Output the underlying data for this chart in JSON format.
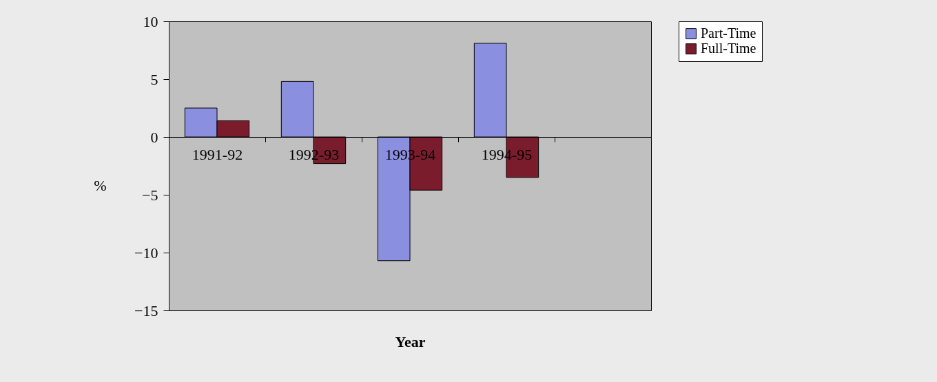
{
  "chart_data": {
    "type": "bar",
    "xlabel": "Year",
    "ylabel": "%",
    "categories": [
      "1991-92",
      "1992-93",
      "1993-94",
      "1994-95",
      null
    ],
    "series": [
      {
        "name": "Part-Time",
        "color": "#8a8fe0",
        "values": [
          2.5,
          4.8,
          -10.7,
          8.1,
          null
        ]
      },
      {
        "name": "Full-Time",
        "color": "#7a1c2c",
        "values": [
          1.4,
          -2.3,
          -4.6,
          -3.5,
          null
        ]
      }
    ],
    "ylim": [
      -15,
      10
    ],
    "yticks": [
      -15,
      -10,
      -5,
      0,
      5,
      10
    ],
    "grid": false,
    "legend": "right"
  }
}
